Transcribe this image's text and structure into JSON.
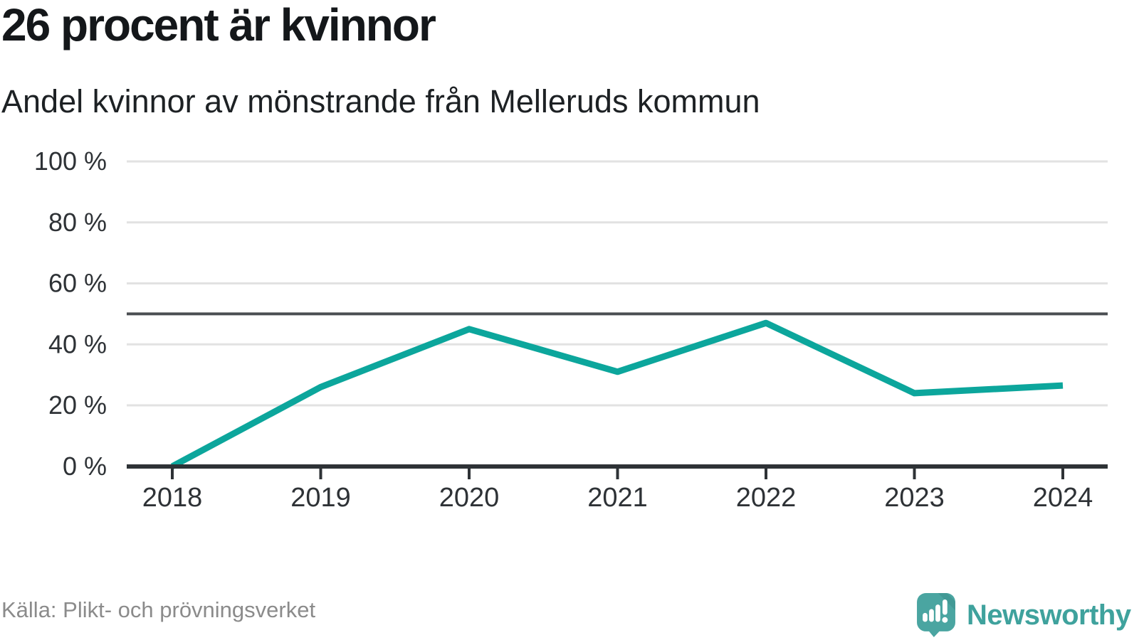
{
  "header": {
    "title": "26 procent är kvinnor",
    "subtitle": "Andel kvinnor av mönstrande från Melleruds kommun"
  },
  "footer": {
    "source": "Källa: Plikt- och prövningsverket",
    "brand": "Newsworthy"
  },
  "colors": {
    "line": "#0ca69c",
    "reference_line": "#4a4e52",
    "grid": "#e2e2e2",
    "axis": "#2e3236",
    "tick_label": "#2e3236",
    "title": "#14171a",
    "source_text": "#8b8b8b",
    "brand_text": "#3fa29d",
    "logo_bubble": "#4aa5a1",
    "logo_fold": "#3b8f8c"
  },
  "chart_data": {
    "type": "line",
    "title": "26 procent är kvinnor",
    "subtitle": "Andel kvinnor av mönstrande från Melleruds kommun",
    "x": [
      "2018",
      "2019",
      "2020",
      "2021",
      "2022",
      "2023",
      "2024"
    ],
    "series": [
      {
        "name": "Andel kvinnor av mönstrande, Melleruds kommun",
        "values": [
          0,
          26,
          45,
          31,
          47,
          24,
          26.5
        ]
      }
    ],
    "unit": "%",
    "ylim": [
      0,
      100
    ],
    "yticks": [
      0,
      20,
      40,
      60,
      80,
      100
    ],
    "ytick_format": "{v} %",
    "reference_line": 50,
    "grid": true,
    "legend": "none",
    "source": "Källa: Plikt- och prövningsverket"
  }
}
